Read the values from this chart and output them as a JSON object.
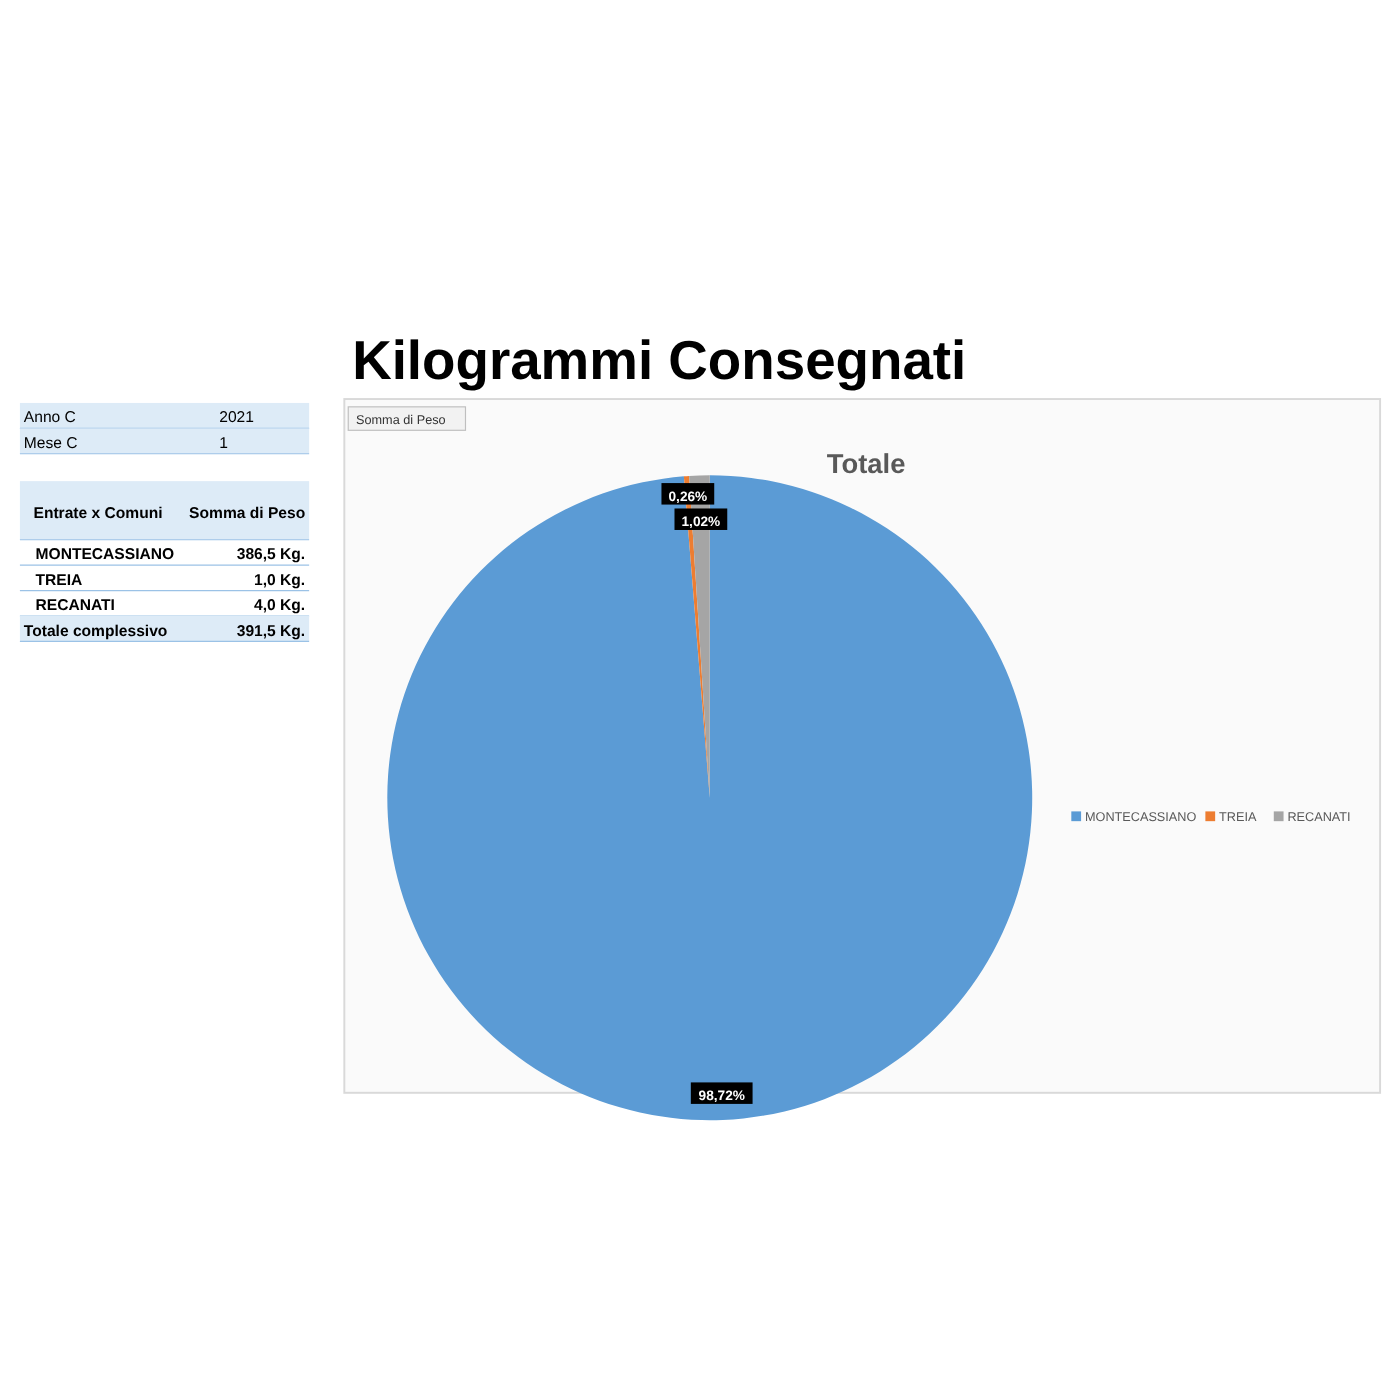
{
  "chart_data": [
    {
      "type": "other",
      "annotations": [
        "Anno C",
        "2021",
        "Mese C",
        "1",
        "Entrate x Comuni",
        "Somma di Peso",
        "MONTECASSIANO",
        "386,5 Kg.",
        "TREIA",
        "1,0 Kg.",
        "RECANATI",
        "4,0 Kg.",
        "Totale complessivo",
        "391,5 Kg."
      ]
    },
    {
      "type": "pie",
      "title": "Kilogrammi Consegnati",
      "subtitle": "Totale",
      "annotations": [
        "Somma di Peso"
      ],
      "categories": [
        "MONTECASSIANO",
        "TREIA",
        "RECANATI"
      ],
      "values": [
        98.72,
        0.26,
        1.02
      ],
      "colors": [
        "#5b9bd5",
        "#ed7d31",
        "#a5a5a5"
      ],
      "value_labels": [
        "98,72%",
        "0,26%",
        "1,02%"
      ],
      "legend": "right"
    }
  ]
}
